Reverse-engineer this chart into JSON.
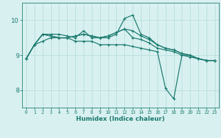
{
  "xlabel": "Humidex (Indice chaleur)",
  "x_values": [
    0,
    1,
    2,
    3,
    4,
    5,
    6,
    7,
    8,
    9,
    10,
    11,
    12,
    13,
    14,
    15,
    16,
    17,
    18,
    19,
    20,
    21,
    22,
    23
  ],
  "line1": [
    8.9,
    9.3,
    9.4,
    9.5,
    9.5,
    9.5,
    9.4,
    9.4,
    9.4,
    9.3,
    9.3,
    9.3,
    9.3,
    9.25,
    9.2,
    9.15,
    9.1,
    8.05,
    7.75,
    9.0,
    9.0,
    8.9,
    8.85,
    8.85
  ],
  "line2": [
    8.9,
    9.3,
    9.6,
    9.6,
    9.6,
    9.55,
    9.5,
    9.7,
    9.5,
    9.5,
    9.5,
    9.6,
    10.05,
    10.15,
    9.6,
    9.5,
    9.3,
    9.2,
    9.15,
    9.05,
    9.0,
    8.9,
    8.85,
    8.85
  ],
  "line3": [
    8.9,
    9.3,
    9.6,
    9.55,
    9.5,
    9.5,
    9.55,
    9.6,
    9.55,
    9.5,
    9.55,
    9.65,
    9.75,
    9.7,
    9.55,
    9.45,
    9.3,
    9.2,
    9.15,
    9.05,
    9.0,
    8.9,
    8.85,
    8.85
  ],
  "line4": [
    8.9,
    9.3,
    9.6,
    9.55,
    9.5,
    9.5,
    9.55,
    9.6,
    9.55,
    9.5,
    9.55,
    9.65,
    9.75,
    9.5,
    9.45,
    9.35,
    9.2,
    9.15,
    9.1,
    9.0,
    8.95,
    8.9,
    8.85,
    8.85
  ],
  "line_color": "#1a7a6e",
  "bg_color": "#d8f0f0",
  "grid_color": "#b0d8d8",
  "ylim": [
    7.5,
    10.5
  ],
  "yticks": [
    8,
    9,
    10
  ],
  "marker": "+",
  "markersize": 3,
  "linewidth": 0.9
}
